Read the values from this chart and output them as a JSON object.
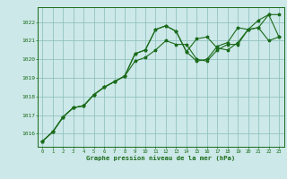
{
  "title": "Graphe pression niveau de la mer (hPa)",
  "bg_color": "#cce8e8",
  "grid_color": "#88bbbb",
  "line_color": "#1a6b1a",
  "x_ticks": [
    0,
    1,
    2,
    3,
    4,
    5,
    6,
    7,
    8,
    9,
    10,
    11,
    12,
    13,
    14,
    15,
    16,
    17,
    18,
    19,
    20,
    21,
    22,
    23
  ],
  "y_ticks": [
    1016,
    1017,
    1018,
    1019,
    1020,
    1021,
    1022
  ],
  "ylim": [
    1015.3,
    1022.8
  ],
  "xlim": [
    -0.5,
    23.5
  ],
  "series1": [
    1015.6,
    1016.1,
    1016.9,
    1017.4,
    1017.5,
    1018.1,
    1018.5,
    1018.8,
    1019.1,
    1020.3,
    1020.5,
    1021.6,
    1021.8,
    1021.5,
    1020.4,
    1021.1,
    1021.2,
    1020.6,
    1020.5,
    1020.9,
    1021.6,
    1022.1,
    1022.4,
    1022.4
  ],
  "series2": [
    1015.6,
    1016.1,
    1016.9,
    1017.4,
    1017.5,
    1018.1,
    1018.5,
    1018.8,
    1019.1,
    1020.3,
    1020.5,
    1021.6,
    1021.8,
    1021.5,
    1020.4,
    1019.9,
    1020.0,
    1020.7,
    1020.9,
    1021.7,
    1021.6,
    1021.7,
    1022.4,
    1021.2
  ],
  "series3": [
    1015.6,
    1016.1,
    1016.9,
    1017.4,
    1017.5,
    1018.1,
    1018.5,
    1018.8,
    1019.1,
    1019.9,
    1020.1,
    1020.5,
    1021.0,
    1020.8,
    1020.8,
    1020.0,
    1019.9,
    1020.5,
    1020.8,
    1020.8,
    1021.6,
    1021.7,
    1021.0,
    1021.2
  ]
}
